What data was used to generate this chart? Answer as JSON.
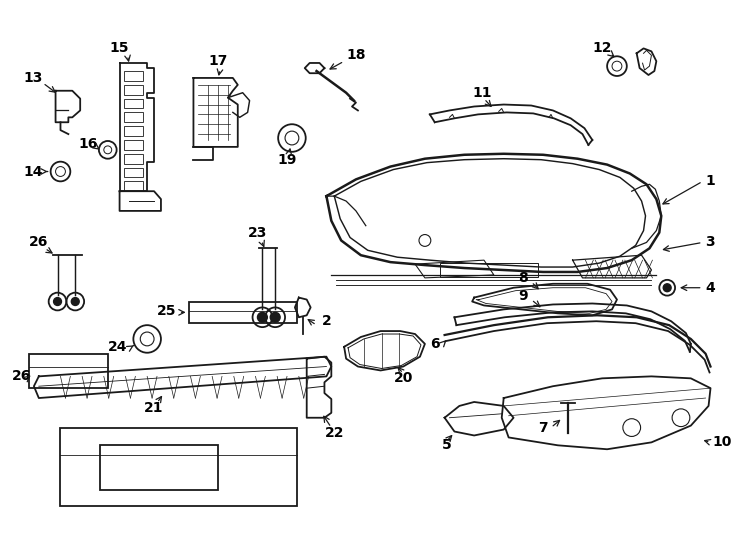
{
  "background": "#ffffff",
  "line_color": "#1a1a1a",
  "label_color": "#000000",
  "figsize": [
    7.34,
    5.4
  ],
  "dpi": 100,
  "fs": 10
}
